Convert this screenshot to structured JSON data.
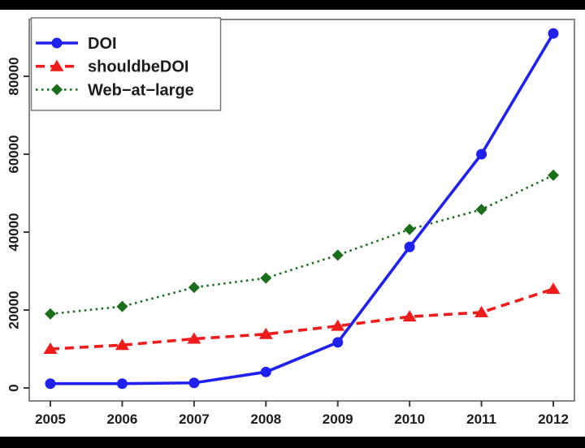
{
  "colors": {
    "background": "#000000",
    "plot_background": "#ffffff",
    "axis_frame": "#787878",
    "tick": "#3a3a3a",
    "text": "#1c1c1c",
    "doi_blue": "#2121ef",
    "shouldbedoi_red": "#ef1c1c",
    "web_at_large_green": "#1b6e1b"
  },
  "chart_data": {
    "type": "line",
    "title": "",
    "xlabel": "",
    "ylabel": "",
    "grid": false,
    "legend_position": "top-left",
    "categories": [
      2005,
      2006,
      2007,
      2008,
      2009,
      2010,
      2011,
      2012
    ],
    "x_tick_labels": [
      "2005",
      "2006",
      "2007",
      "2008",
      "2009",
      "2010",
      "2011",
      "2012"
    ],
    "y_tick_values": [
      0,
      20000,
      40000,
      60000,
      80000
    ],
    "y_tick_labels": [
      "0",
      "20000",
      "40000",
      "60000",
      "80000"
    ],
    "ylim": [
      0,
      94500
    ],
    "series": [
      {
        "name": "DOI",
        "color": "#2121ef",
        "line_style": "solid",
        "marker": "circle",
        "values": [
          1100,
          1100,
          1300,
          4100,
          11700,
          36200,
          60000,
          91000
        ]
      },
      {
        "name": "shouldbeDOI",
        "color": "#ef1c1c",
        "line_style": "dashed",
        "marker": "triangle",
        "values": [
          10000,
          11000,
          12600,
          13800,
          15900,
          18300,
          19400,
          25400
        ]
      },
      {
        "name": "Web−at−large",
        "color": "#1b6e1b",
        "line_style": "dotted",
        "marker": "diamond",
        "values": [
          19000,
          20900,
          25800,
          28200,
          34100,
          40700,
          45800,
          54600
        ]
      }
    ]
  }
}
